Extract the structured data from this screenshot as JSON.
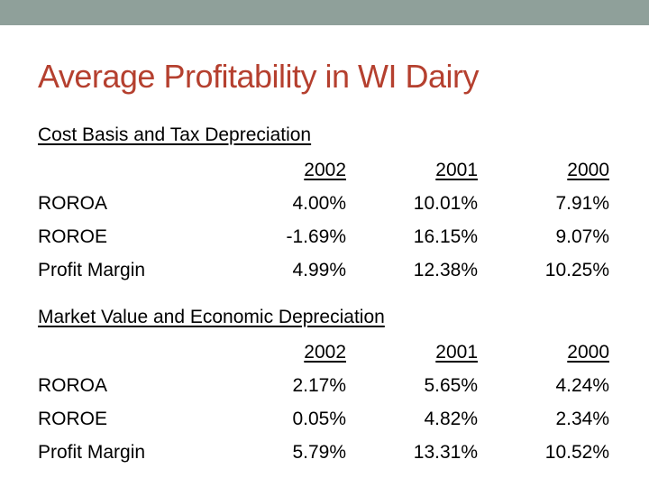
{
  "slide": {
    "title": "Average Profitability in WI Dairy",
    "accent_color": "#b5402f",
    "topbar_color": "#8fa09a"
  },
  "tables": [
    {
      "label": "Cost Basis and Tax Depreciation",
      "years": [
        "2002",
        "2001",
        "2000"
      ],
      "rows": [
        {
          "name": "ROROA",
          "values": [
            "4.00%",
            "10.01%",
            "7.91%"
          ]
        },
        {
          "name": "ROROE",
          "values": [
            "-1.69%",
            "16.15%",
            "9.07%"
          ]
        },
        {
          "name": "Profit Margin",
          "values": [
            "4.99%",
            "12.38%",
            "10.25%"
          ]
        }
      ]
    },
    {
      "label": "Market Value and Economic Depreciation",
      "years": [
        "2002",
        "2001",
        "2000"
      ],
      "rows": [
        {
          "name": "ROROA",
          "values": [
            "2.17%",
            "5.65%",
            "4.24%"
          ]
        },
        {
          "name": "ROROE",
          "values": [
            "0.05%",
            "4.82%",
            "2.34%"
          ]
        },
        {
          "name": "Profit Margin",
          "values": [
            "5.79%",
            "13.31%",
            "10.52%"
          ]
        }
      ]
    }
  ]
}
